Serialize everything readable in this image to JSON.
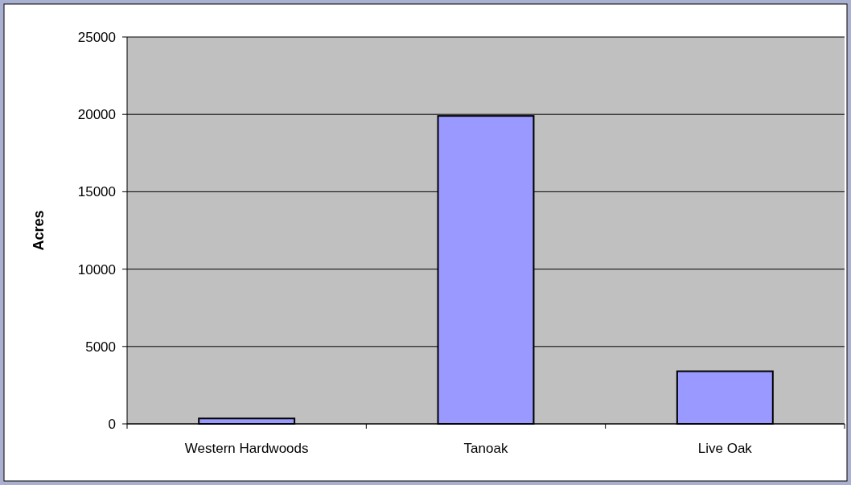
{
  "chart_data": {
    "type": "bar",
    "ylabel": "Acres",
    "categories": [
      "Western Hardwoods",
      "Tanoak",
      "Live Oak"
    ],
    "values": [
      350,
      19900,
      3400
    ],
    "color": "#9999ff",
    "ylim": [
      0,
      25000
    ],
    "yticks": [
      0,
      5000,
      10000,
      15000,
      20000,
      25000
    ],
    "grid": "y"
  }
}
